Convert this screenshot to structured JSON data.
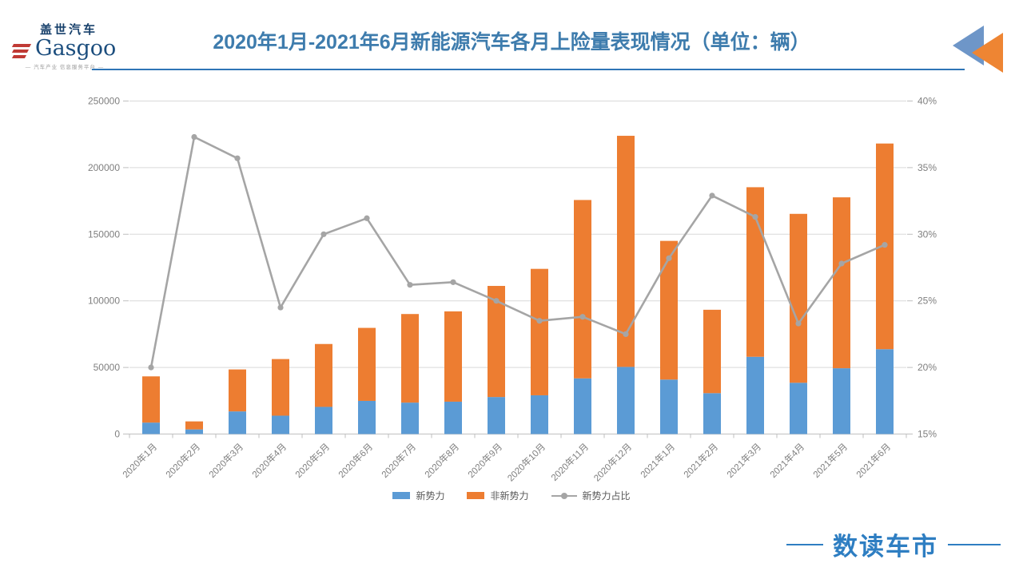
{
  "header": {
    "logo": {
      "cn": "盖世汽车",
      "en": "Gasgoo",
      "tagline": "— 汽车产业 信息服务平台 —"
    },
    "title": "2020年1月-2021年6月新能源汽车各月上险量表现情况（单位：辆）"
  },
  "chart_data": {
    "type": "bar",
    "subtype": "stacked-bar-with-line",
    "title": "2020年1月-2021年6月新能源汽车各月上险量表现情况（单位：辆）",
    "categories": [
      "2020年1月",
      "2020年2月",
      "2020年3月",
      "2020年4月",
      "2020年5月",
      "2020年6月",
      "2020年7月",
      "2020年8月",
      "2020年9月",
      "2020年10月",
      "2020年11月",
      "2020年12月",
      "2021年1月",
      "2021年2月",
      "2021年3月",
      "2021年4月",
      "2021年5月",
      "2021年6月"
    ],
    "series": [
      {
        "name": "新势力",
        "type": "bar",
        "stack": "total",
        "color": "#5B9BD5",
        "values": [
          8600,
          3500,
          17000,
          13800,
          20400,
          24900,
          23600,
          24300,
          27800,
          29100,
          41800,
          50400,
          40900,
          30700,
          58000,
          38500,
          49400,
          63700
        ]
      },
      {
        "name": "非新势力",
        "type": "bar",
        "stack": "total",
        "color": "#ED7D31",
        "values": [
          34700,
          6000,
          31500,
          42500,
          47200,
          54800,
          66500,
          67800,
          83400,
          94900,
          133900,
          173500,
          104100,
          62600,
          127300,
          126800,
          128300,
          154400
        ]
      },
      {
        "name": "新势力占比",
        "type": "line",
        "axis": "right",
        "color": "#A5A5A5",
        "values": [
          20.0,
          37.3,
          35.7,
          24.5,
          30.0,
          31.2,
          26.2,
          26.4,
          25.0,
          23.5,
          23.8,
          22.5,
          28.2,
          32.9,
          31.3,
          23.3,
          27.8,
          29.2
        ]
      }
    ],
    "left_axis": {
      "min": 0,
      "max": 250000,
      "step": 50000,
      "ticks": [
        "0",
        "50000",
        "100000",
        "150000",
        "200000",
        "250000"
      ]
    },
    "right_axis": {
      "min": 15,
      "max": 40,
      "step": 5,
      "ticks": [
        "15%",
        "20%",
        "25%",
        "30%",
        "35%",
        "40%"
      ]
    },
    "grid": true,
    "legend_position": "bottom"
  },
  "footer": {
    "brand": "数读车市"
  },
  "colors": {
    "title_blue": "#3E7CAD",
    "rule_blue": "#2E75B6",
    "bar_blue": "#5B9BD5",
    "bar_orange": "#ED7D31",
    "line_gray": "#A5A5A5",
    "axis_text": "#7F7F7F",
    "gridline": "#D9D9D9",
    "brand_blue": "#2E7EC2"
  }
}
